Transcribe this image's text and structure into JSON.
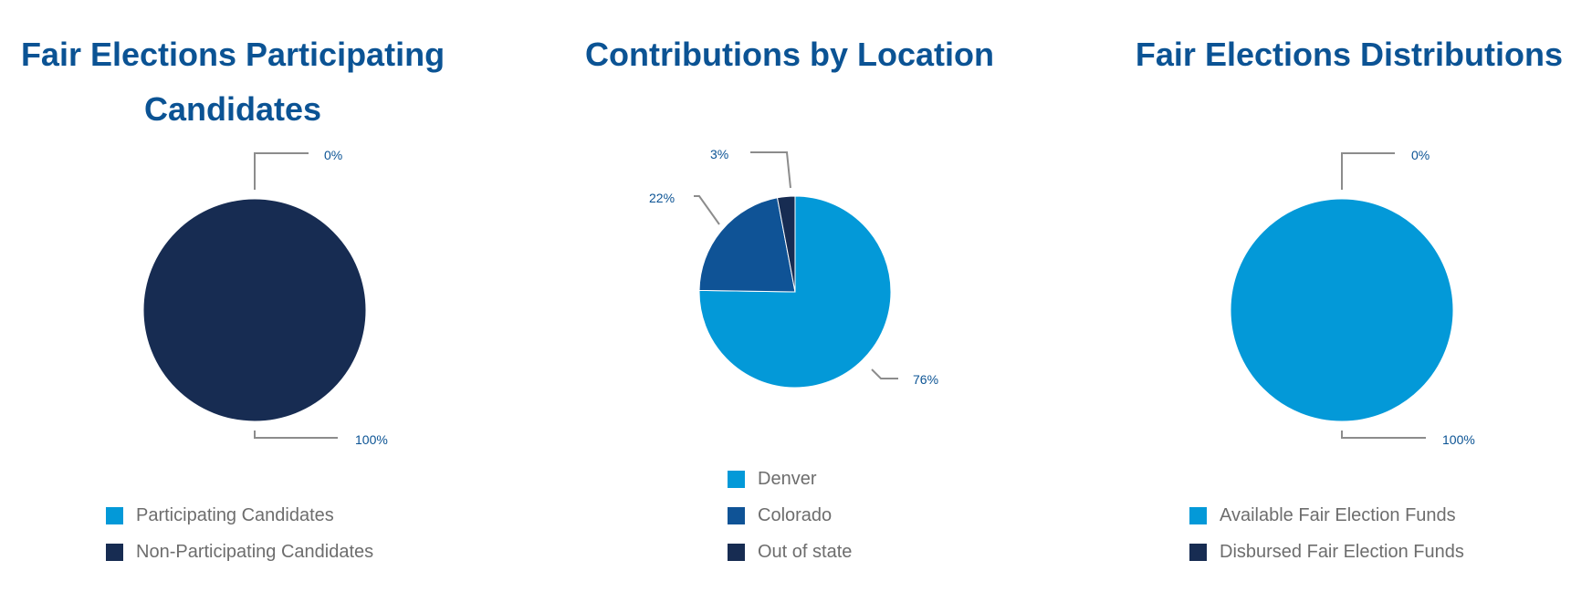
{
  "chart_data": [
    {
      "type": "pie",
      "title": "Fair Elections Participating Candidates",
      "categories": [
        "Participating Candidates",
        "Non-Participating Candidates"
      ],
      "values": [
        0,
        100
      ],
      "data_labels": [
        "0%",
        "100%"
      ],
      "colors": [
        "#0399d8",
        "#172c52"
      ],
      "legend_position": "bottom"
    },
    {
      "type": "pie",
      "title": "Contributions by Location",
      "categories": [
        "Denver",
        "Colorado",
        "Out of state"
      ],
      "values": [
        76,
        22,
        3
      ],
      "data_labels": [
        "76%",
        "22%",
        "3%"
      ],
      "colors": [
        "#0399d8",
        "#0f5396",
        "#172c52"
      ],
      "legend_position": "bottom"
    },
    {
      "type": "pie",
      "title": "Fair Elections Distributions",
      "categories": [
        "Available Fair Election Funds",
        "Disbursed Fair Election Funds"
      ],
      "values": [
        100,
        0
      ],
      "data_labels": [
        "100%",
        "0%"
      ],
      "colors": [
        "#0399d8",
        "#172c52"
      ],
      "legend_position": "bottom"
    }
  ]
}
